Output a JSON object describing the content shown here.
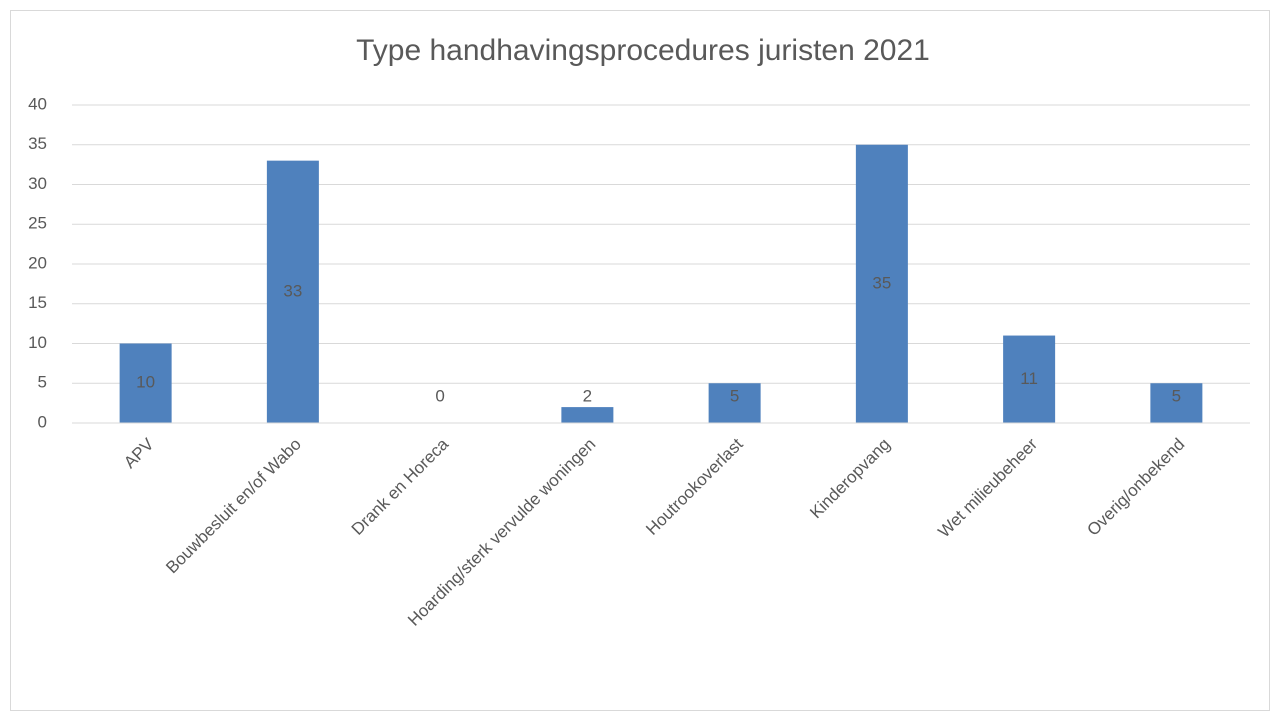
{
  "chart_data": {
    "type": "bar",
    "title": "Type handhavingsprocedures juristen 2021",
    "categories": [
      "APV",
      "Bouwbesluit en/of Wabo",
      "Drank en Horeca",
      "Hoarding/sterk vervulde woningen",
      "Houtrookoverlast",
      "Kinderopvang",
      "Wet milieubeheer",
      "Overig/onbekend"
    ],
    "values": [
      10,
      33,
      0,
      2,
      5,
      35,
      11,
      5
    ],
    "color": "#4f81bd",
    "ylim": [
      0,
      40
    ],
    "yticks": [
      0,
      5,
      10,
      15,
      20,
      25,
      30,
      35,
      40
    ],
    "grid": true
  }
}
